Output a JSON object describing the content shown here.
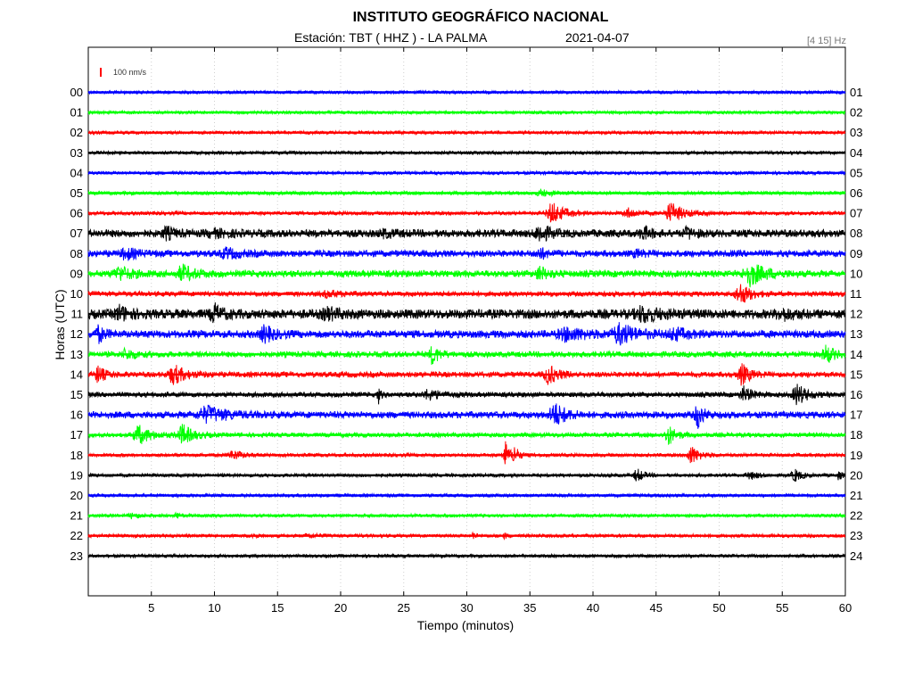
{
  "header": {
    "title": "INSTITUTO GEOGRÁFICO NACIONAL",
    "station": "Estación:  TBT ( HHZ ) - LA PALMA",
    "date": "2021-04-07",
    "filter": "[4 15] Hz"
  },
  "scale_label": "100 nm/s",
  "colors": {
    "blue": "#0000ff",
    "green": "#00ff00",
    "red": "#ff0000",
    "black": "#000000",
    "scale": "#ff0000"
  },
  "chart_data": {
    "type": "line",
    "title": "INSTITUTO GEOGRÁFICO NACIONAL",
    "xlabel": "Tiempo (minutos)",
    "ylabel": "Horas (UTC)",
    "xlim": [
      0,
      60
    ],
    "x_ticks": [
      5,
      10,
      15,
      20,
      25,
      30,
      35,
      40,
      45,
      50,
      55,
      60
    ],
    "grid": "vertical dotted",
    "left_labels": [
      "00",
      "01",
      "02",
      "03",
      "04",
      "05",
      "06",
      "07",
      "08",
      "09",
      "10",
      "11",
      "12",
      "13",
      "14",
      "15",
      "16",
      "17",
      "18",
      "19",
      "20",
      "21",
      "22",
      "23"
    ],
    "right_labels": [
      "01",
      "02",
      "03",
      "04",
      "05",
      "06",
      "07",
      "08",
      "09",
      "10",
      "11",
      "12",
      "13",
      "14",
      "15",
      "16",
      "17",
      "18",
      "19",
      "20",
      "21",
      "22",
      "23",
      "24"
    ],
    "traces": [
      {
        "hour": "00",
        "color": "blue",
        "noise": 0.4,
        "events": []
      },
      {
        "hour": "01",
        "color": "green",
        "noise": 0.4,
        "events": []
      },
      {
        "hour": "02",
        "color": "red",
        "noise": 0.5,
        "events": []
      },
      {
        "hour": "03",
        "color": "black",
        "noise": 0.5,
        "events": []
      },
      {
        "hour": "04",
        "color": "blue",
        "noise": 0.5,
        "events": []
      },
      {
        "hour": "05",
        "color": "green",
        "noise": 0.6,
        "events": [
          [
            36.0,
            1.5,
            3.0
          ]
        ]
      },
      {
        "hour": "06",
        "color": "red",
        "noise": 0.8,
        "events": [
          [
            36.8,
            1.4,
            12
          ],
          [
            42.8,
            1.2,
            5
          ],
          [
            46.2,
            1.5,
            11
          ]
        ]
      },
      {
        "hour": "07",
        "color": "black",
        "noise": 3.0,
        "events": [
          [
            6.2,
            1.0,
            6
          ],
          [
            10.0,
            2.0,
            3
          ],
          [
            23.5,
            1.5,
            3
          ],
          [
            35.8,
            1.2,
            9
          ],
          [
            44.0,
            1.0,
            6
          ],
          [
            47.5,
            1.0,
            5
          ]
        ]
      },
      {
        "hour": "08",
        "color": "blue",
        "noise": 2.5,
        "events": [
          [
            3.0,
            1.2,
            6
          ],
          [
            11.0,
            1.5,
            5
          ],
          [
            35.8,
            1.0,
            5
          ],
          [
            43.5,
            1.0,
            3
          ]
        ]
      },
      {
        "hour": "09",
        "color": "green",
        "noise": 2.5,
        "events": [
          [
            2.5,
            1.5,
            7
          ],
          [
            7.5,
            1.5,
            8
          ],
          [
            35.8,
            1.0,
            7
          ],
          [
            52.5,
            1.8,
            12
          ]
        ]
      },
      {
        "hour": "10",
        "color": "red",
        "noise": 1.5,
        "events": [
          [
            19.0,
            1.5,
            3
          ],
          [
            51.7,
            1.3,
            11
          ]
        ]
      },
      {
        "hour": "11",
        "color": "black",
        "noise": 4.0,
        "events": [
          [
            2.5,
            1.2,
            7
          ],
          [
            10.0,
            1.0,
            9
          ],
          [
            19.0,
            1.5,
            5
          ],
          [
            44.0,
            2.0,
            7
          ],
          [
            55.0,
            1.5,
            5
          ]
        ]
      },
      {
        "hour": "12",
        "color": "blue",
        "noise": 3.0,
        "events": [
          [
            0.8,
            0.8,
            8
          ],
          [
            14.0,
            1.2,
            8
          ],
          [
            38.0,
            2.5,
            6
          ],
          [
            42.2,
            2.0,
            10
          ],
          [
            46.5,
            1.5,
            6
          ]
        ]
      },
      {
        "hour": "13",
        "color": "green",
        "noise": 2.0,
        "events": [
          [
            3.0,
            1.2,
            5
          ],
          [
            27.3,
            0.8,
            10
          ],
          [
            58.5,
            1.0,
            9
          ]
        ]
      },
      {
        "hour": "14",
        "color": "red",
        "noise": 1.8,
        "events": [
          [
            0.8,
            0.8,
            9
          ],
          [
            6.8,
            1.4,
            10
          ],
          [
            36.5,
            1.2,
            10
          ],
          [
            51.8,
            1.0,
            11
          ]
        ]
      },
      {
        "hour": "15",
        "color": "black",
        "noise": 1.5,
        "events": [
          [
            23.0,
            0.3,
            9
          ],
          [
            27.0,
            1.5,
            5
          ],
          [
            52.0,
            1.0,
            8
          ],
          [
            56.2,
            1.2,
            11
          ]
        ]
      },
      {
        "hour": "16",
        "color": "blue",
        "noise": 2.5,
        "events": [
          [
            9.5,
            2.5,
            8
          ],
          [
            37.0,
            1.4,
            12
          ],
          [
            48.3,
            0.7,
            14
          ]
        ]
      },
      {
        "hour": "17",
        "color": "green",
        "noise": 1.2,
        "events": [
          [
            4.0,
            1.5,
            10
          ],
          [
            7.5,
            1.3,
            11
          ],
          [
            46.0,
            1.0,
            10
          ]
        ]
      },
      {
        "hour": "18",
        "color": "red",
        "noise": 0.7,
        "events": [
          [
            11.5,
            1.2,
            5
          ],
          [
            33.0,
            0.5,
            18
          ],
          [
            33.8,
            0.6,
            9
          ],
          [
            47.8,
            1.0,
            10
          ]
        ]
      },
      {
        "hour": "19",
        "color": "black",
        "noise": 0.6,
        "events": [
          [
            43.5,
            0.8,
            7
          ],
          [
            52.5,
            1.0,
            4
          ],
          [
            56.0,
            0.8,
            7
          ],
          [
            59.5,
            0.4,
            5
          ]
        ]
      },
      {
        "hour": "20",
        "color": "blue",
        "noise": 0.5,
        "events": []
      },
      {
        "hour": "21",
        "color": "green",
        "noise": 0.5,
        "events": [
          [
            3.5,
            1.0,
            2.5
          ],
          [
            7.0,
            0.5,
            3
          ]
        ]
      },
      {
        "hour": "22",
        "color": "red",
        "noise": 0.6,
        "events": [
          [
            13.0,
            0.5,
            3
          ],
          [
            17.5,
            1.0,
            2
          ],
          [
            30.5,
            0.3,
            4
          ],
          [
            33.0,
            0.4,
            2.5
          ]
        ]
      },
      {
        "hour": "23",
        "color": "black",
        "noise": 0.5,
        "events": []
      }
    ]
  }
}
